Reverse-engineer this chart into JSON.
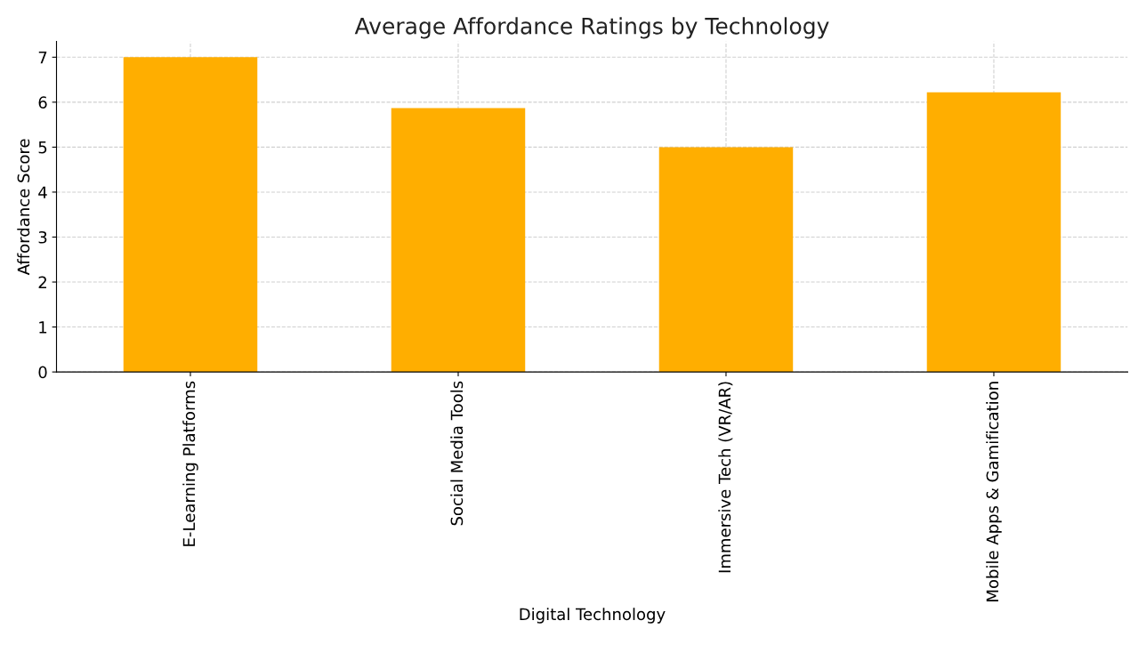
{
  "chart_data": {
    "type": "bar",
    "title": "Average Affordance Ratings by Technology",
    "xlabel": "Digital Technology",
    "ylabel": "Affordance Score",
    "categories": [
      "E-Learning Platforms",
      "Social Media Tools",
      "Immersive Tech (VR/AR)",
      "Mobile Apps & Gamification"
    ],
    "values": [
      7.0,
      5.87,
      5.0,
      6.22
    ],
    "color": "#ffae00",
    "ylim": [
      0,
      7.35
    ],
    "yticks": [
      0,
      1,
      2,
      3,
      4,
      5,
      6,
      7
    ],
    "grid": true
  }
}
